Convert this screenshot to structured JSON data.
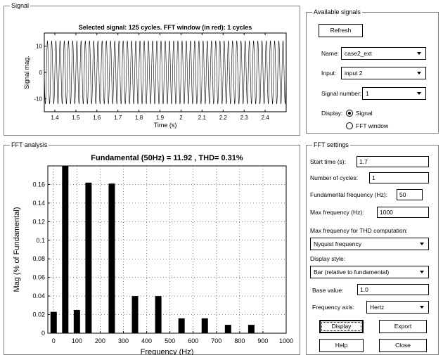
{
  "signal_panel": {
    "title": "Signal",
    "chart_data": {
      "type": "line",
      "title": "Selected signal: 125 cycles. FFT window (in red): 1 cycles",
      "xlabel": "Time (s)",
      "ylabel": "Signal mag.",
      "xlim": [
        1.35,
        2.5
      ],
      "ylim": [
        -15,
        15
      ],
      "xticks": [
        1.4,
        1.5,
        1.6,
        1.7,
        1.8,
        1.9,
        2,
        2.1,
        2.2,
        2.3,
        2.4
      ],
      "yticks": [
        10,
        0,
        -10
      ],
      "frequency_hz": 50,
      "amplitude": 12,
      "grid": false
    }
  },
  "fft_panel": {
    "title": "FFT analysis",
    "chart_data": {
      "type": "bar",
      "title": "Fundamental (50Hz) = 11.92 , THD= 0.31%",
      "xlabel": "Frequency (Hz)",
      "ylabel": "Mag (% of Fundamental)",
      "xlim": [
        -25,
        1000
      ],
      "ylim": [
        0,
        0.18
      ],
      "xticks": [
        0,
        100,
        200,
        300,
        400,
        500,
        600,
        700,
        800,
        900,
        1000
      ],
      "yticks": [
        0,
        0.02,
        0.04,
        0.06,
        0.08,
        0.1,
        0.12,
        0.14,
        0.16
      ],
      "x": [
        0,
        50,
        100,
        150,
        250,
        350,
        450,
        550,
        650,
        750,
        850
      ],
      "values": [
        0.023,
        0.18,
        0.025,
        0.162,
        0.161,
        0.04,
        0.04,
        0.016,
        0.016,
        0.009,
        0.009
      ],
      "grid": true
    }
  },
  "available_signals": {
    "title": "Available signals",
    "refresh_label": "Refresh",
    "name_label": "Name:",
    "name_value": "case2_ext",
    "input_label": "Input:",
    "input_value": "input 2",
    "signal_number_label": "Signal number:",
    "signal_number_value": "1",
    "display_label": "Display:",
    "display_signal": "Signal",
    "display_fft": "FFT window"
  },
  "fft_settings": {
    "title": "FFT settings",
    "start_time_label": "Start time (s):",
    "start_time_value": "1.7",
    "cycles_label": "Number of cycles:",
    "cycles_value": "1",
    "fund_freq_label": "Fundamental frequency (Hz):",
    "fund_freq_value": "50",
    "max_freq_label": "Max frequency (Hz):",
    "max_freq_value": "1000",
    "thd_label": "Max frequency for THD computation:",
    "thd_value": "Nyquist frequency",
    "display_style_label": "Display style:",
    "display_style_value": "Bar (relative to fundamental)",
    "base_value_label": "Base value:",
    "base_value": "1.0",
    "freq_axis_label": "Frequency axis:",
    "freq_axis_value": "Hertz",
    "display_button": "Display",
    "export_button": "Export",
    "help_button": "Help",
    "close_button": "Close"
  }
}
